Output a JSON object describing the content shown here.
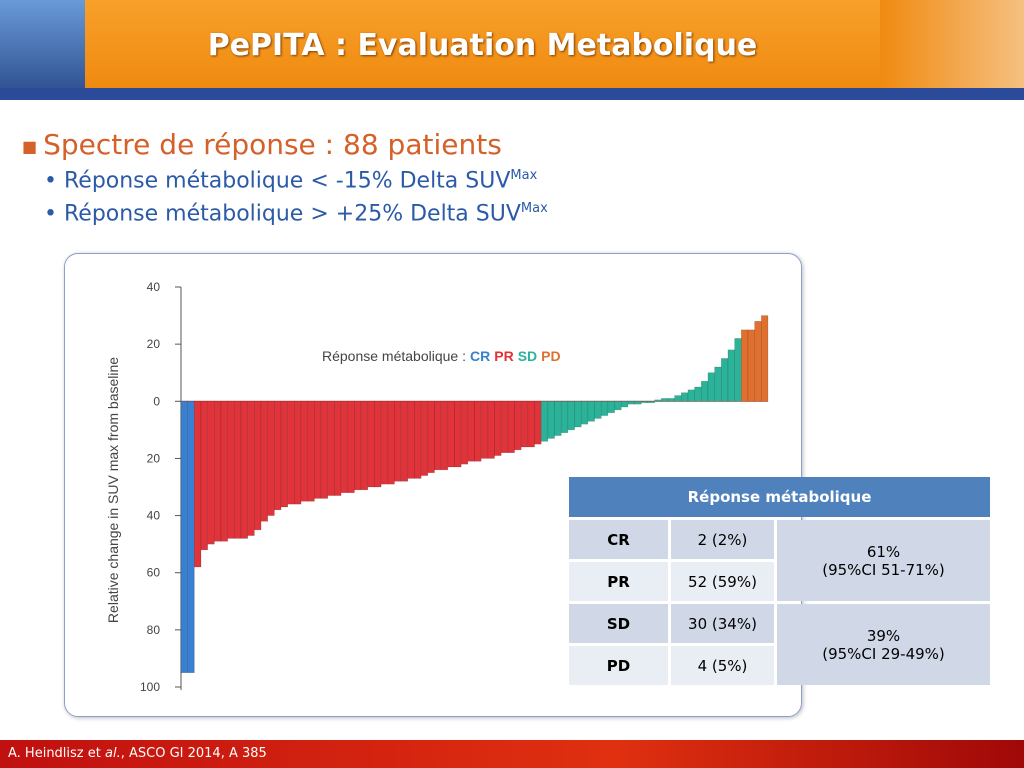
{
  "header": {
    "title": "PePITA : Evaluation Metabolique"
  },
  "bullets": {
    "main": "Spectre de réponse : 88 patients",
    "sub": [
      {
        "text": "Réponse métabolique < -15% Delta SUV",
        "sup": "Max"
      },
      {
        "text": "Réponse métabolique > +25% Delta SUV",
        "sup": "Max"
      }
    ]
  },
  "chart_data": {
    "type": "bar",
    "y_label": "Relative change in SUV max from baseline",
    "legend_title": "Réponse métabolique :",
    "ylim": [
      -100,
      40
    ],
    "yticks": [
      40,
      20,
      0,
      {
        "value": -20,
        "label": "20"
      },
      {
        "value": -40,
        "label": "40"
      },
      {
        "value": -60,
        "label": "60"
      },
      {
        "value": -80,
        "label": "80"
      },
      {
        "value": -100,
        "label": "100"
      }
    ],
    "series": [
      {
        "name": "CR",
        "color": "#3a7fd0",
        "values": [
          -95,
          -95
        ]
      },
      {
        "name": "PR",
        "color": "#e0333a",
        "values": [
          -58,
          -52,
          -50,
          -49,
          -49,
          -48,
          -48,
          -48,
          -47,
          -45,
          -42,
          -40,
          -38,
          -37,
          -36,
          -36,
          -35,
          -35,
          -34,
          -34,
          -33,
          -33,
          -32,
          -32,
          -31,
          -31,
          -30,
          -30,
          -29,
          -29,
          -28,
          -28,
          -27,
          -27,
          -26,
          -25,
          -24,
          -24,
          -23,
          -23,
          -22,
          -21,
          -21,
          -20,
          -20,
          -19,
          -18,
          -18,
          -17,
          -16,
          -16,
          -15
        ]
      },
      {
        "name": "SD",
        "color": "#2bb39a",
        "values": [
          -14,
          -13,
          -12,
          -11,
          -10,
          -9,
          -8,
          -7,
          -6,
          -5,
          -4,
          -3,
          -2,
          -1,
          -1,
          -0.5,
          -0.5,
          0.5,
          1,
          1,
          2,
          3,
          4,
          5,
          7,
          10,
          12,
          15,
          18,
          22
        ]
      },
      {
        "name": "PD",
        "color": "#e07030",
        "values": [
          25,
          25,
          28,
          30
        ]
      }
    ]
  },
  "table": {
    "header": "Réponse métabolique",
    "rows": [
      [
        "CR",
        "2 (2%)"
      ],
      [
        "PR",
        "52 (59%)"
      ],
      [
        "SD",
        "30 (34%)"
      ],
      [
        "PD",
        "4 (5%)"
      ]
    ],
    "groups": [
      [
        "61%",
        "(95%CI 51-71%)"
      ],
      [
        "39%",
        "(95%CI 29-49%)"
      ]
    ]
  },
  "footer": {
    "parts": [
      "A. Heindlisz et ",
      "al.",
      ", ASCO GI 2014, A 385"
    ]
  }
}
